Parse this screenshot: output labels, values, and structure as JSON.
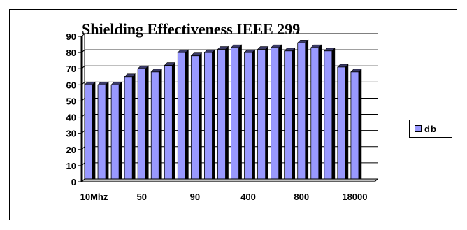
{
  "colors": {
    "bar_front": "#9999FF",
    "bar_side": "#000000",
    "bar_top": "#3a3a66",
    "grid": "#000000"
  },
  "chart_data": {
    "type": "bar",
    "title": "Shielding Effectiveness IEEE 299",
    "xlabel": "",
    "ylabel": "",
    "ylim": [
      0,
      90
    ],
    "y_ticks": [
      0,
      10,
      20,
      30,
      40,
      50,
      60,
      70,
      80,
      90
    ],
    "x_tick_labels": [
      "10Mhz",
      "50",
      "90",
      "400",
      "800",
      "18000"
    ],
    "x_tick_every": 4,
    "grid": true,
    "legend_position": "right",
    "categories": [
      "10Mhz",
      "",
      "",
      "",
      "50",
      "",
      "",
      "",
      "90",
      "",
      "",
      "",
      "400",
      "",
      "",
      "",
      "800",
      "",
      "",
      "",
      "18000",
      ""
    ],
    "series": [
      {
        "name": "db",
        "values": [
          60,
          60,
          60,
          65,
          70,
          68,
          72,
          80,
          78,
          80,
          82,
          83,
          80,
          82,
          83,
          81,
          86,
          83,
          81,
          71,
          68,
          0
        ]
      }
    ]
  }
}
